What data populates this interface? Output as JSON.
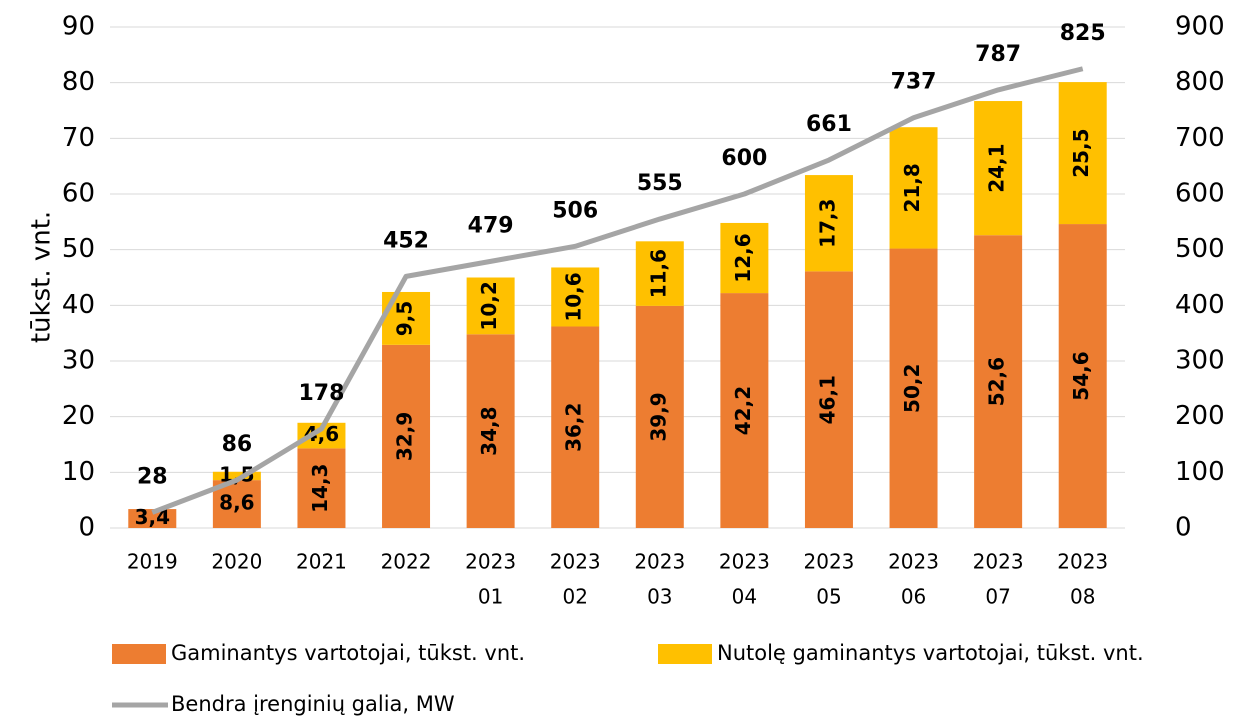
{
  "chart_data": {
    "type": "bar",
    "stacked": true,
    "ylabel": "tūkst. vnt.",
    "categories": [
      [
        "2019"
      ],
      [
        "2020"
      ],
      [
        "2021"
      ],
      [
        "2022"
      ],
      [
        "2023",
        "01"
      ],
      [
        "2023",
        "02"
      ],
      [
        "2023",
        "03"
      ],
      [
        "2023",
        "04"
      ],
      [
        "2023",
        "05"
      ],
      [
        "2023",
        "06"
      ],
      [
        "2023",
        "07"
      ],
      [
        "2023",
        "08"
      ]
    ],
    "series": [
      {
        "name": "Gaminantys vartotojai, tūkst. vnt.",
        "color": "#ed7d31",
        "type": "bar",
        "values": [
          3.4,
          8.6,
          14.3,
          32.9,
          34.8,
          36.2,
          39.9,
          42.2,
          46.1,
          50.2,
          52.6,
          54.6
        ],
        "value_labels": [
          "3,4",
          "8,6",
          "14,3",
          "32,9",
          "34,8",
          "36,2",
          "39,9",
          "42,2",
          "46,1",
          "50,2",
          "52,6",
          "54,6"
        ]
      },
      {
        "name": "Nutolę gaminantys vartotojai, tūkst. vnt.",
        "color": "#ffc000",
        "type": "bar",
        "values": [
          null,
          1.5,
          4.6,
          9.5,
          10.2,
          10.6,
          11.6,
          12.6,
          17.3,
          21.8,
          24.1,
          25.5
        ],
        "value_labels": [
          null,
          "1,5",
          "4,6",
          "9,5",
          "10,2",
          "10,6",
          "11,6",
          "12,6",
          "17,3",
          "21,8",
          "24,1",
          "25,5"
        ]
      },
      {
        "name": "Bendra įrenginių galia, MW",
        "color": "#a5a5a5",
        "type": "line",
        "axis": "y2",
        "values": [
          28,
          86,
          178,
          452,
          479,
          506,
          555,
          600,
          661,
          737,
          787,
          825
        ]
      }
    ],
    "ylim": [
      0,
      90
    ],
    "yticks": [
      0,
      10,
      20,
      30,
      40,
      50,
      60,
      70,
      80,
      90
    ],
    "y2lim": [
      0,
      900
    ],
    "y2ticks": [
      0,
      100,
      200,
      300,
      400,
      500,
      600,
      700,
      800,
      900
    ],
    "grid": true,
    "legend": "bottom"
  }
}
